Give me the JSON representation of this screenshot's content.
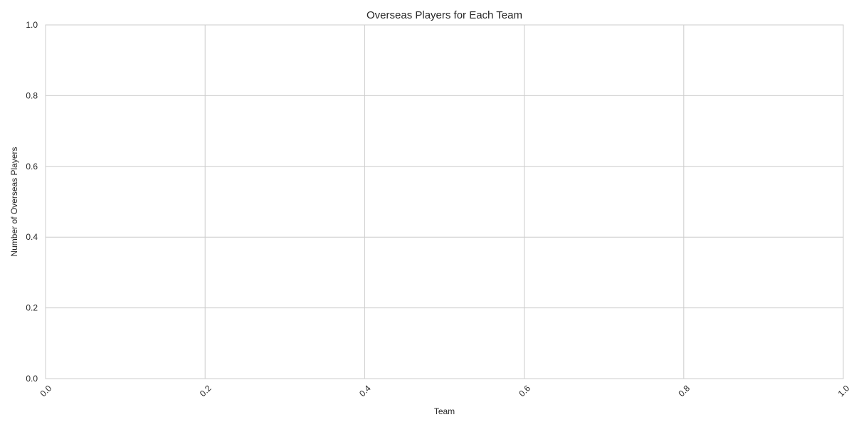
{
  "chart_data": {
    "type": "bar",
    "title": "Overseas Players for Each Team",
    "xlabel": "Team",
    "ylabel": "Number of Overseas Players",
    "categories": [],
    "values": [],
    "xlim": [
      0.0,
      1.0
    ],
    "ylim": [
      0.0,
      1.0
    ],
    "xticks": [
      "0.0",
      "0.2",
      "0.4",
      "0.6",
      "0.8",
      "1.0"
    ],
    "yticks": [
      "0.0",
      "0.2",
      "0.4",
      "0.6",
      "0.8",
      "1.0"
    ],
    "grid": true,
    "xtick_rotation_deg": 45
  }
}
